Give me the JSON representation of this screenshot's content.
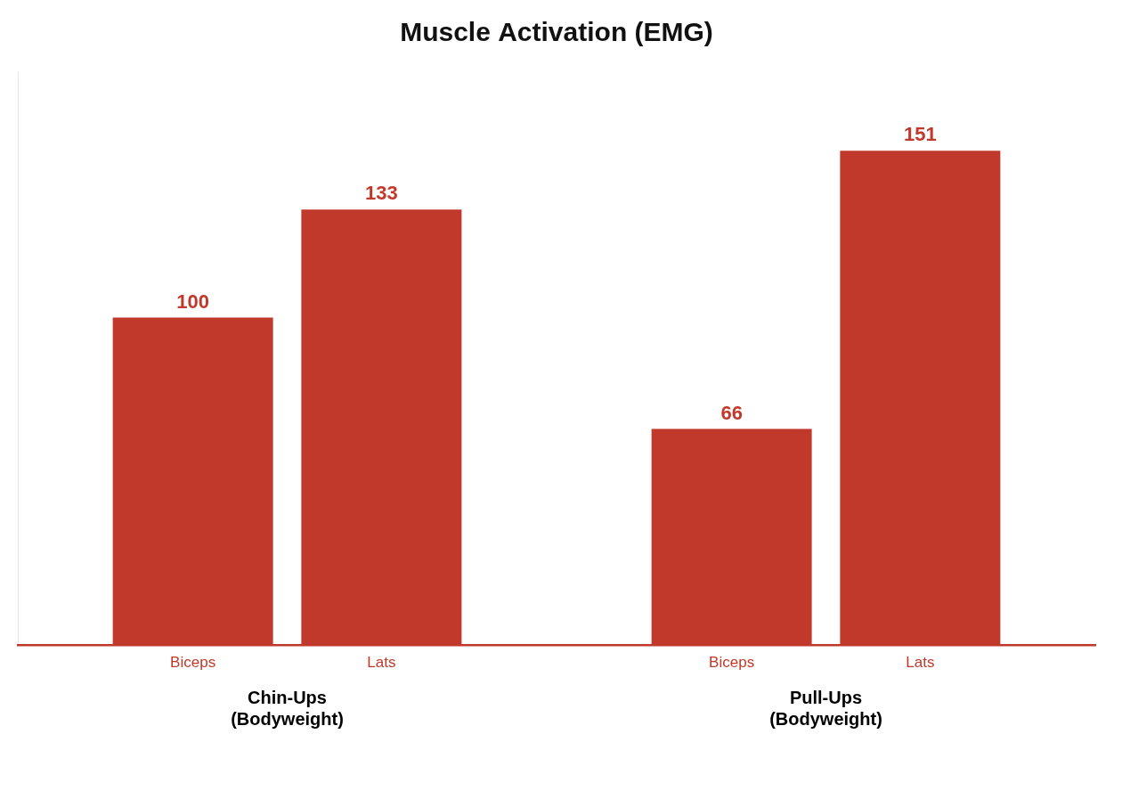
{
  "chart_data": {
    "type": "bar",
    "title": "Muscle Activation (EMG)",
    "categories": [
      "Chin-Ups\n(Bodyweight)",
      "Pull-Ups\n(Bodyweight)"
    ],
    "series": [
      {
        "name": "Biceps",
        "values": [
          100,
          66
        ]
      },
      {
        "name": "Lats",
        "values": [
          133,
          151
        ]
      }
    ],
    "color": "#C0392B",
    "ylim": [
      0,
      175
    ],
    "grid": false,
    "data_labels": true,
    "tick_labels": "x"
  }
}
